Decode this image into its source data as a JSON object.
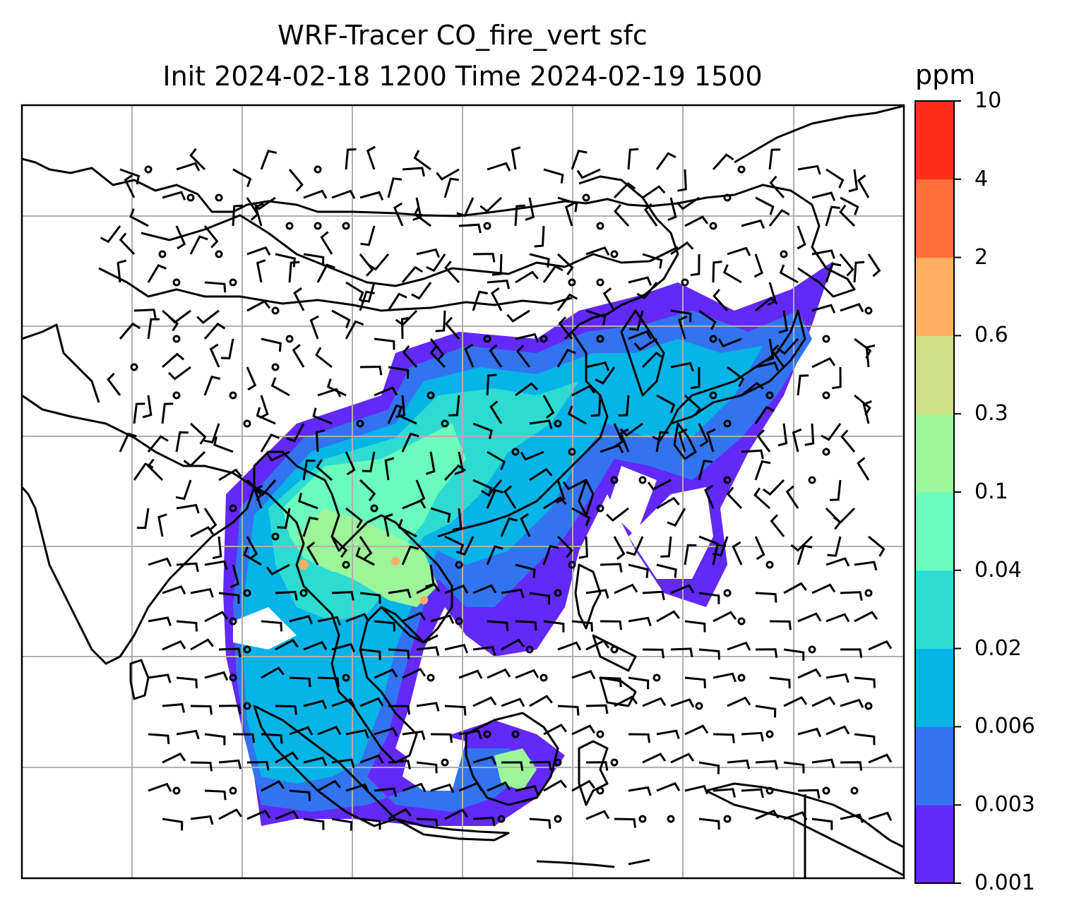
{
  "title": {
    "line1": "WRF-Tracer CO_fire_vert sfc",
    "line2": "Init 2024-02-18 1200 Time 2024-02-19 1500"
  },
  "colorbar": {
    "unit": "ppm",
    "levels": [
      "0.001",
      "0.003",
      "0.006",
      "0.02",
      "0.04",
      "0.1",
      "0.3",
      "0.6",
      "2",
      "4",
      "10"
    ],
    "colors": [
      "#6329f8",
      "#3274f0",
      "#06b4e8",
      "#2ddbd3",
      "#6afbbd",
      "#9df59a",
      "#d0e084",
      "#feaf62",
      "#ff6e3b",
      "#ff2e18"
    ]
  },
  "map": {
    "gridline_color": "#b0b0b0",
    "coastline_color": "#000000"
  }
}
